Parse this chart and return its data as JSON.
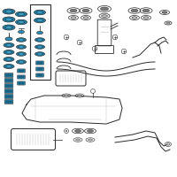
{
  "bg_color": "#ffffff",
  "teal_dark": "#1a6080",
  "teal_mid": "#2a90b8",
  "teal_light": "#50b8d8",
  "line_color": "#2a2a2a",
  "gray_color": "#777777",
  "light_gray": "#bbbbbb",
  "figsize": [
    2.0,
    2.0
  ],
  "dpi": 100
}
